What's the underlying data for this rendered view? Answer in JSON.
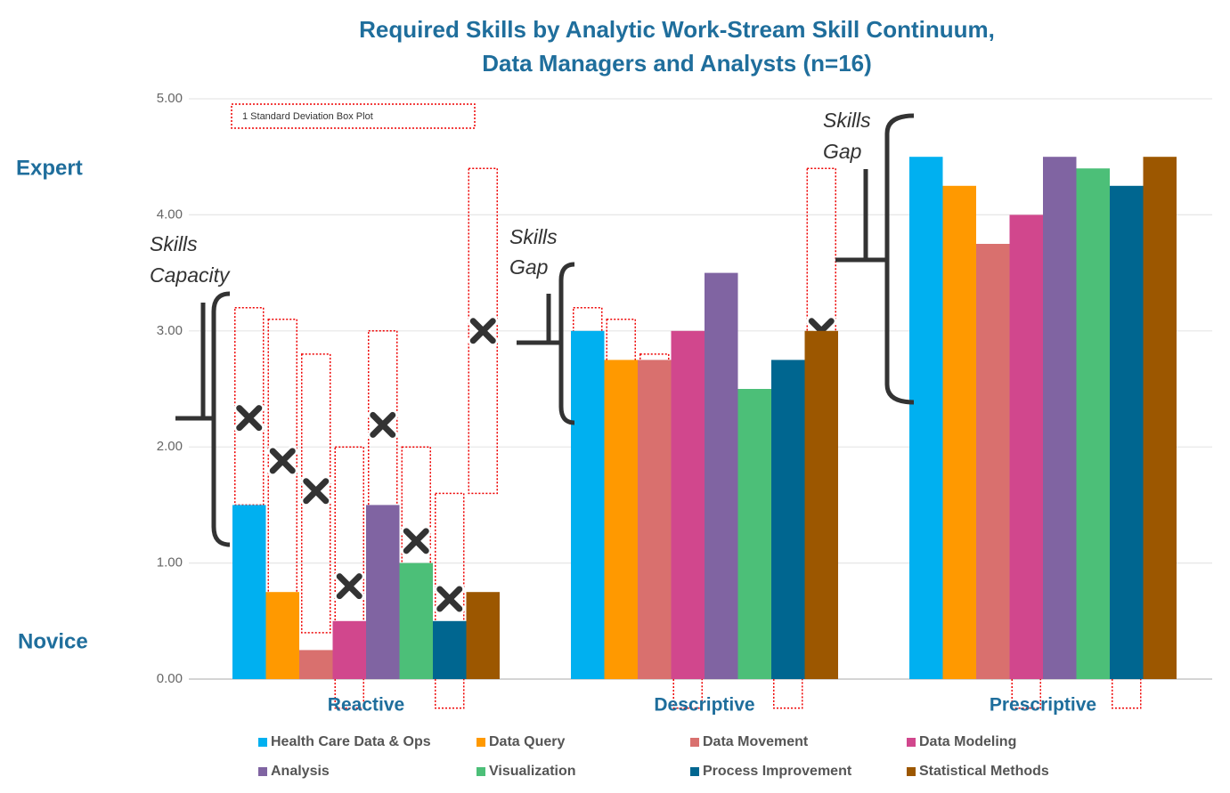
{
  "chart_data": {
    "type": "bar",
    "title": [
      "Required Skills by Analytic Work-Stream Skill Continuum,",
      "Data Managers and Analysts (n=16)"
    ],
    "categories": [
      "Reactive",
      "Descriptive",
      "Prescriptive"
    ],
    "series": [
      {
        "name": "Health Care Data & Ops",
        "color": "#00b0f0",
        "values": [
          1.5,
          3.0,
          4.5
        ],
        "mean": 2.25,
        "box": [
          1.5,
          3.2
        ]
      },
      {
        "name": "Data Query",
        "color": "#ff9900",
        "values": [
          0.75,
          2.75,
          4.25
        ],
        "mean": 1.88,
        "box": [
          0.7,
          3.1
        ]
      },
      {
        "name": "Data Movement",
        "color": "#d9706e",
        "values": [
          0.25,
          2.75,
          3.75
        ],
        "mean": 1.62,
        "box": [
          0.4,
          2.8
        ]
      },
      {
        "name": "Data Modeling",
        "color": "#d1478d",
        "values": [
          0.5,
          3.0,
          4.0
        ],
        "mean": 0.8,
        "box": [
          -0.25,
          2.0
        ]
      },
      {
        "name": "Analysis",
        "color": "#8064a2",
        "values": [
          1.5,
          3.5,
          4.5
        ],
        "mean": 2.19,
        "box": [
          1.3,
          3.0
        ]
      },
      {
        "name": "Visualization",
        "color": "#4cbf78",
        "values": [
          1.0,
          2.5,
          4.4
        ],
        "mean": 1.19,
        "box": [
          0.4,
          2.0
        ]
      },
      {
        "name": "Process Improvement",
        "color": "#006690",
        "values": [
          0.5,
          2.75,
          4.25
        ],
        "mean": 0.69,
        "box": [
          -0.25,
          1.6
        ]
      },
      {
        "name": "Statistical Methods",
        "color": "#9c5700",
        "values": [
          0.75,
          3.0,
          4.5
        ],
        "mean": 3.0,
        "box": [
          1.6,
          4.4
        ]
      }
    ],
    "ylim": [
      0,
      5
    ],
    "yticks": [
      {
        "value": 0,
        "label": "0.00"
      },
      {
        "value": 1,
        "label": "1.00"
      },
      {
        "value": 2,
        "label": "2.00"
      },
      {
        "value": 3,
        "label": "3.00"
      },
      {
        "value": 4,
        "label": "4.00"
      },
      {
        "value": 5,
        "label": "5.00"
      }
    ],
    "grid": true,
    "level_labels": [
      "Expert",
      "Novice"
    ],
    "box_plot_label": "1 Standard Deviation Box Plot",
    "annotations": [
      [
        "Skills",
        "Capacity"
      ],
      [
        "Skills",
        "Gap"
      ],
      [
        "Skills",
        "Gap"
      ]
    ]
  }
}
